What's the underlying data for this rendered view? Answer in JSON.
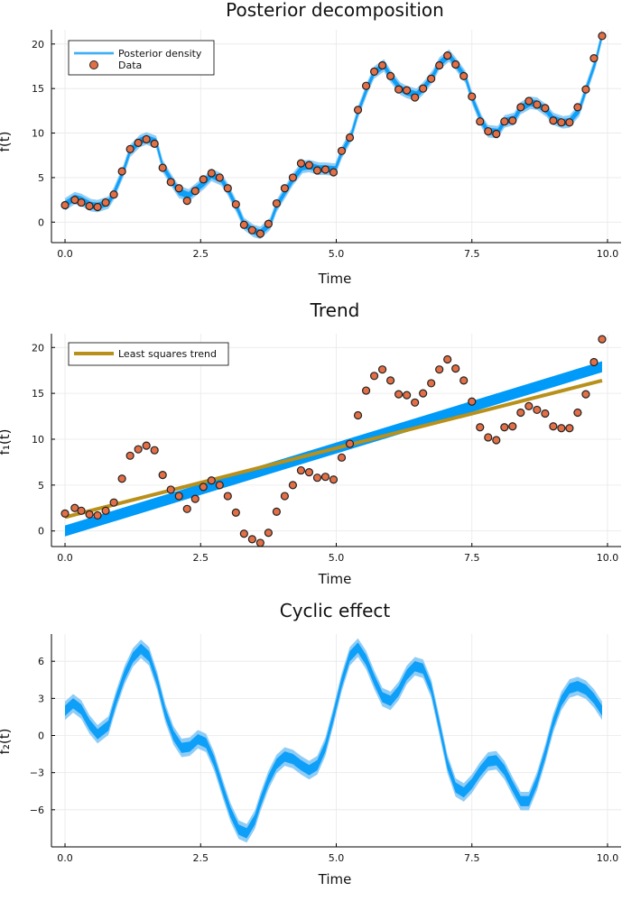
{
  "colors": {
    "band": "#009af9",
    "band_light": "#7cc4f4",
    "point_fill": "#e26f46",
    "point_stroke": "#222222",
    "trend_line": "#b8901a",
    "grid": "#e8e8e8",
    "axis": "#000000"
  },
  "chart_data": [
    {
      "type": "line",
      "title": "Posterior decomposition",
      "xlabel": "Time",
      "ylabel": "f(t)",
      "xlim": [
        -0.25,
        10.25
      ],
      "ylim": [
        -2.3,
        21.6
      ],
      "xticks": [
        0,
        2.5,
        5,
        7.5,
        10
      ],
      "xtick_labels": [
        "0.0",
        "2.5",
        "5.0",
        "7.5",
        "10.0"
      ],
      "yticks": [
        0,
        5,
        10,
        15,
        20
      ],
      "ytick_labels": [
        "0",
        "5",
        "10",
        "15",
        "20"
      ],
      "legend": [
        {
          "label": "Posterior density",
          "kind": "line"
        },
        {
          "label": "Data",
          "kind": "marker"
        }
      ],
      "legend_position": "top-left",
      "series": [
        {
          "name": "Posterior density",
          "kind": "band",
          "x": [
            0,
            0.18,
            0.3,
            0.48,
            0.6,
            0.8,
            0.9,
            1.08,
            1.2,
            1.38,
            1.5,
            1.68,
            1.8,
            1.98,
            2.1,
            2.28,
            2.4,
            2.58,
            2.7,
            2.88,
            3.0,
            3.18,
            3.3,
            3.48,
            3.6,
            3.78,
            3.9,
            4.08,
            4.2,
            4.38,
            4.5,
            4.68,
            4.8,
            4.98,
            5.1,
            5.28,
            5.4,
            5.58,
            5.7,
            5.88,
            6.0,
            6.18,
            6.3,
            6.48,
            6.6,
            6.78,
            6.9,
            7.08,
            7.2,
            7.38,
            7.5,
            7.68,
            7.8,
            7.98,
            8.1,
            8.28,
            8.4,
            8.58,
            8.7,
            8.88,
            9.0,
            9.18,
            9.3,
            9.48,
            9.6,
            9.78,
            9.9
          ],
          "y": [
            2.0,
            2.7,
            2.5,
            1.9,
            1.8,
            2.2,
            3.2,
            5.8,
            8.0,
            9.1,
            9.4,
            9.0,
            6.3,
            4.5,
            3.4,
            3.0,
            3.6,
            4.5,
            5.3,
            4.8,
            3.7,
            1.5,
            -0.2,
            -1.0,
            -1.2,
            -0.2,
            1.8,
            3.6,
            4.8,
            6.2,
            6.3,
            6.0,
            6.0,
            5.9,
            7.8,
            9.8,
            12.3,
            15.2,
            16.8,
            17.6,
            16.4,
            15.0,
            14.6,
            14.3,
            15.0,
            16.4,
            17.8,
            18.7,
            17.8,
            16.3,
            14.0,
            11.3,
            10.2,
            10.1,
            11.3,
            11.6,
            12.8,
            13.4,
            13.3,
            12.5,
            11.6,
            11.2,
            11.3,
            12.6,
            14.8,
            18.0,
            21.0
          ],
          "half_width": 0.7
        },
        {
          "name": "Data",
          "kind": "scatter",
          "x": [
            0,
            0.18,
            0.3,
            0.45,
            0.6,
            0.75,
            0.9,
            1.05,
            1.2,
            1.35,
            1.5,
            1.65,
            1.8,
            1.95,
            2.1,
            2.25,
            2.4,
            2.55,
            2.7,
            2.85,
            3.0,
            3.15,
            3.3,
            3.45,
            3.6,
            3.75,
            3.9,
            4.05,
            4.2,
            4.35,
            4.5,
            4.65,
            4.8,
            4.95,
            5.1,
            5.25,
            5.4,
            5.55,
            5.7,
            5.85,
            6.0,
            6.15,
            6.3,
            6.45,
            6.6,
            6.75,
            6.9,
            7.05,
            7.2,
            7.35,
            7.5,
            7.65,
            7.8,
            7.95,
            8.1,
            8.25,
            8.4,
            8.55,
            8.7,
            8.85,
            9.0,
            9.15,
            9.3,
            9.45,
            9.6,
            9.75,
            9.9
          ],
          "y": [
            1.9,
            2.5,
            2.2,
            1.8,
            1.7,
            2.2,
            3.1,
            5.7,
            8.2,
            8.9,
            9.3,
            8.8,
            6.1,
            4.5,
            3.8,
            2.4,
            3.5,
            4.8,
            5.5,
            5.0,
            3.8,
            2.0,
            -0.3,
            -0.9,
            -1.3,
            -0.2,
            2.1,
            3.8,
            5.0,
            6.6,
            6.4,
            5.8,
            5.9,
            5.6,
            8.0,
            9.5,
            12.6,
            15.3,
            16.9,
            17.6,
            16.4,
            14.9,
            14.8,
            14.0,
            15.0,
            16.1,
            17.6,
            18.7,
            17.7,
            16.4,
            14.1,
            11.3,
            10.2,
            9.9,
            11.3,
            11.4,
            12.9,
            13.6,
            13.2,
            12.8,
            11.4,
            11.2,
            11.2,
            12.9,
            14.9,
            18.4,
            20.9
          ]
        }
      ]
    },
    {
      "type": "line",
      "title": "Trend",
      "xlabel": "Time",
      "ylabel": "f₁(t)",
      "xlim": [
        -0.25,
        10.25
      ],
      "ylim": [
        -1.7,
        21.5
      ],
      "xticks": [
        0,
        2.5,
        5,
        7.5,
        10
      ],
      "xtick_labels": [
        "0.0",
        "2.5",
        "5.0",
        "7.5",
        "10.0"
      ],
      "yticks": [
        0,
        5,
        10,
        15,
        20
      ],
      "ytick_labels": [
        "0",
        "5",
        "10",
        "15",
        "20"
      ],
      "legend": [
        {
          "label": "Least squares trend",
          "kind": "line"
        }
      ],
      "legend_position": "top-left",
      "series": [
        {
          "name": "Posterior trend",
          "kind": "wedge",
          "x": [
            0,
            9.9
          ],
          "y_lower": [
            -0.6,
            17.3
          ],
          "y_upper": [
            0.6,
            18.5
          ]
        },
        {
          "name": "Least squares trend",
          "kind": "line",
          "x": [
            0,
            9.9
          ],
          "y": [
            1.5,
            16.4
          ]
        },
        {
          "name": "Data",
          "kind": "scatter",
          "ref": 0
        }
      ]
    },
    {
      "type": "line",
      "title": "Cyclic effect",
      "xlabel": "Time",
      "ylabel": "f₂(t)",
      "xlim": [
        -0.25,
        10.25
      ],
      "ylim": [
        -9.0,
        8.2
      ],
      "xticks": [
        0,
        2.5,
        5,
        7.5,
        10
      ],
      "xtick_labels": [
        "0.0",
        "2.5",
        "5.0",
        "7.5",
        "10.0"
      ],
      "yticks": [
        -6,
        -3,
        0,
        3,
        6
      ],
      "ytick_labels": [
        "−6",
        "−3",
        "0",
        "3",
        "6"
      ],
      "series": [
        {
          "name": "Cyclic effect",
          "kind": "band",
          "x": [
            0,
            0.15,
            0.3,
            0.45,
            0.6,
            0.8,
            0.95,
            1.1,
            1.25,
            1.4,
            1.55,
            1.7,
            1.85,
            2.0,
            2.15,
            2.3,
            2.45,
            2.6,
            2.75,
            2.9,
            3.05,
            3.2,
            3.35,
            3.5,
            3.6,
            3.75,
            3.9,
            4.05,
            4.2,
            4.35,
            4.5,
            4.65,
            4.8,
            4.95,
            5.1,
            5.25,
            5.4,
            5.55,
            5.7,
            5.85,
            6.0,
            6.15,
            6.3,
            6.45,
            6.6,
            6.75,
            6.9,
            7.05,
            7.2,
            7.35,
            7.5,
            7.65,
            7.8,
            7.95,
            8.1,
            8.25,
            8.4,
            8.55,
            8.7,
            8.85,
            9.0,
            9.15,
            9.3,
            9.45,
            9.6,
            9.75,
            9.9
          ],
          "y": [
            2.0,
            2.6,
            2.1,
            0.9,
            0.1,
            0.8,
            3.0,
            4.9,
            6.3,
            7.0,
            6.4,
            4.4,
            1.8,
            0.0,
            -1.0,
            -0.9,
            -0.3,
            -0.6,
            -2.1,
            -4.2,
            -6.2,
            -7.6,
            -7.9,
            -6.8,
            -5.4,
            -3.6,
            -2.3,
            -1.7,
            -1.9,
            -2.4,
            -2.8,
            -2.4,
            -0.9,
            1.6,
            4.3,
            6.4,
            7.1,
            6.1,
            4.5,
            3.1,
            2.8,
            3.6,
            4.9,
            5.6,
            5.4,
            3.8,
            0.8,
            -2.3,
            -4.2,
            -4.6,
            -3.9,
            -2.9,
            -2.1,
            -2.0,
            -2.8,
            -4.1,
            -5.3,
            -5.3,
            -3.7,
            -1.5,
            1.0,
            2.8,
            3.8,
            4.0,
            3.7,
            3.0,
            2.0
          ],
          "half_width": 0.75
        }
      ]
    }
  ]
}
